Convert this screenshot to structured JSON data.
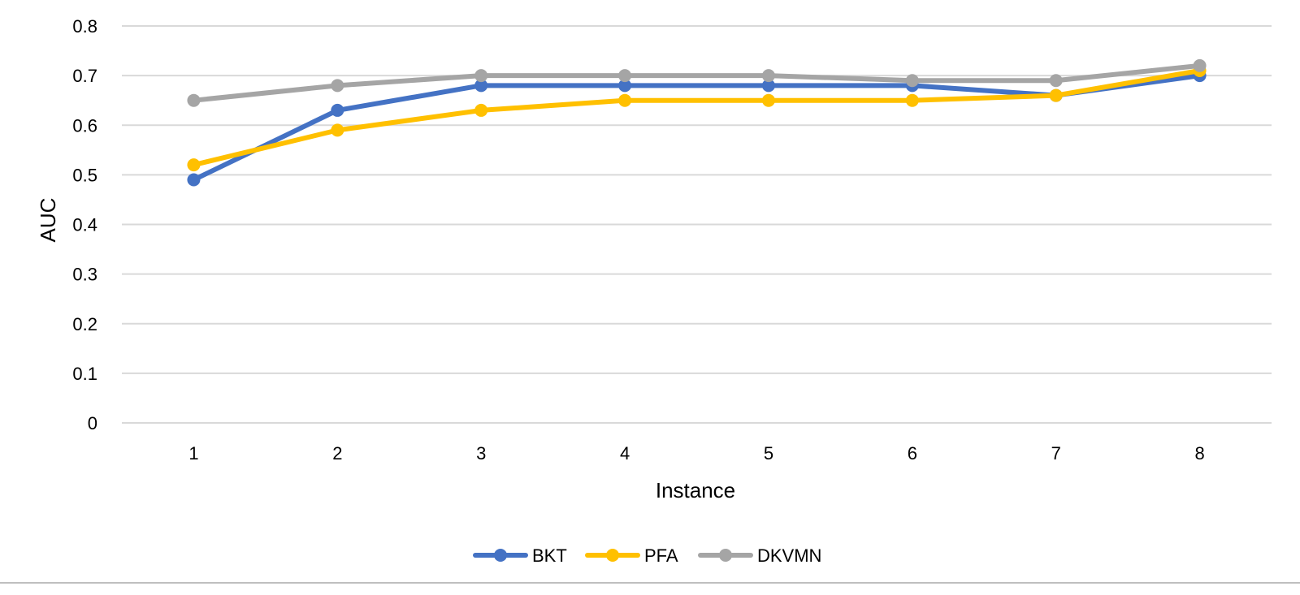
{
  "chart_data": {
    "type": "line",
    "title": "",
    "xlabel": "Instance",
    "ylabel": "AUC",
    "categories": [
      "1",
      "2",
      "3",
      "4",
      "5",
      "6",
      "7",
      "8"
    ],
    "ylim": [
      0,
      0.8
    ],
    "yticks": [
      "0",
      "0.1",
      "0.2",
      "0.3",
      "0.4",
      "0.5",
      "0.6",
      "0.7",
      "0.8"
    ],
    "grid": true,
    "legend_position": "bottom",
    "series": [
      {
        "name": "BKT",
        "color": "#4472C4",
        "values": [
          0.49,
          0.63,
          0.68,
          0.68,
          0.68,
          0.68,
          0.66,
          0.7
        ]
      },
      {
        "name": "PFA",
        "color": "#FFC000",
        "values": [
          0.52,
          0.59,
          0.63,
          0.65,
          0.65,
          0.65,
          0.66,
          0.71
        ]
      },
      {
        "name": "DKVMN",
        "color": "#A5A5A5",
        "values": [
          0.65,
          0.68,
          0.7,
          0.7,
          0.7,
          0.69,
          0.69,
          0.72
        ]
      }
    ]
  }
}
